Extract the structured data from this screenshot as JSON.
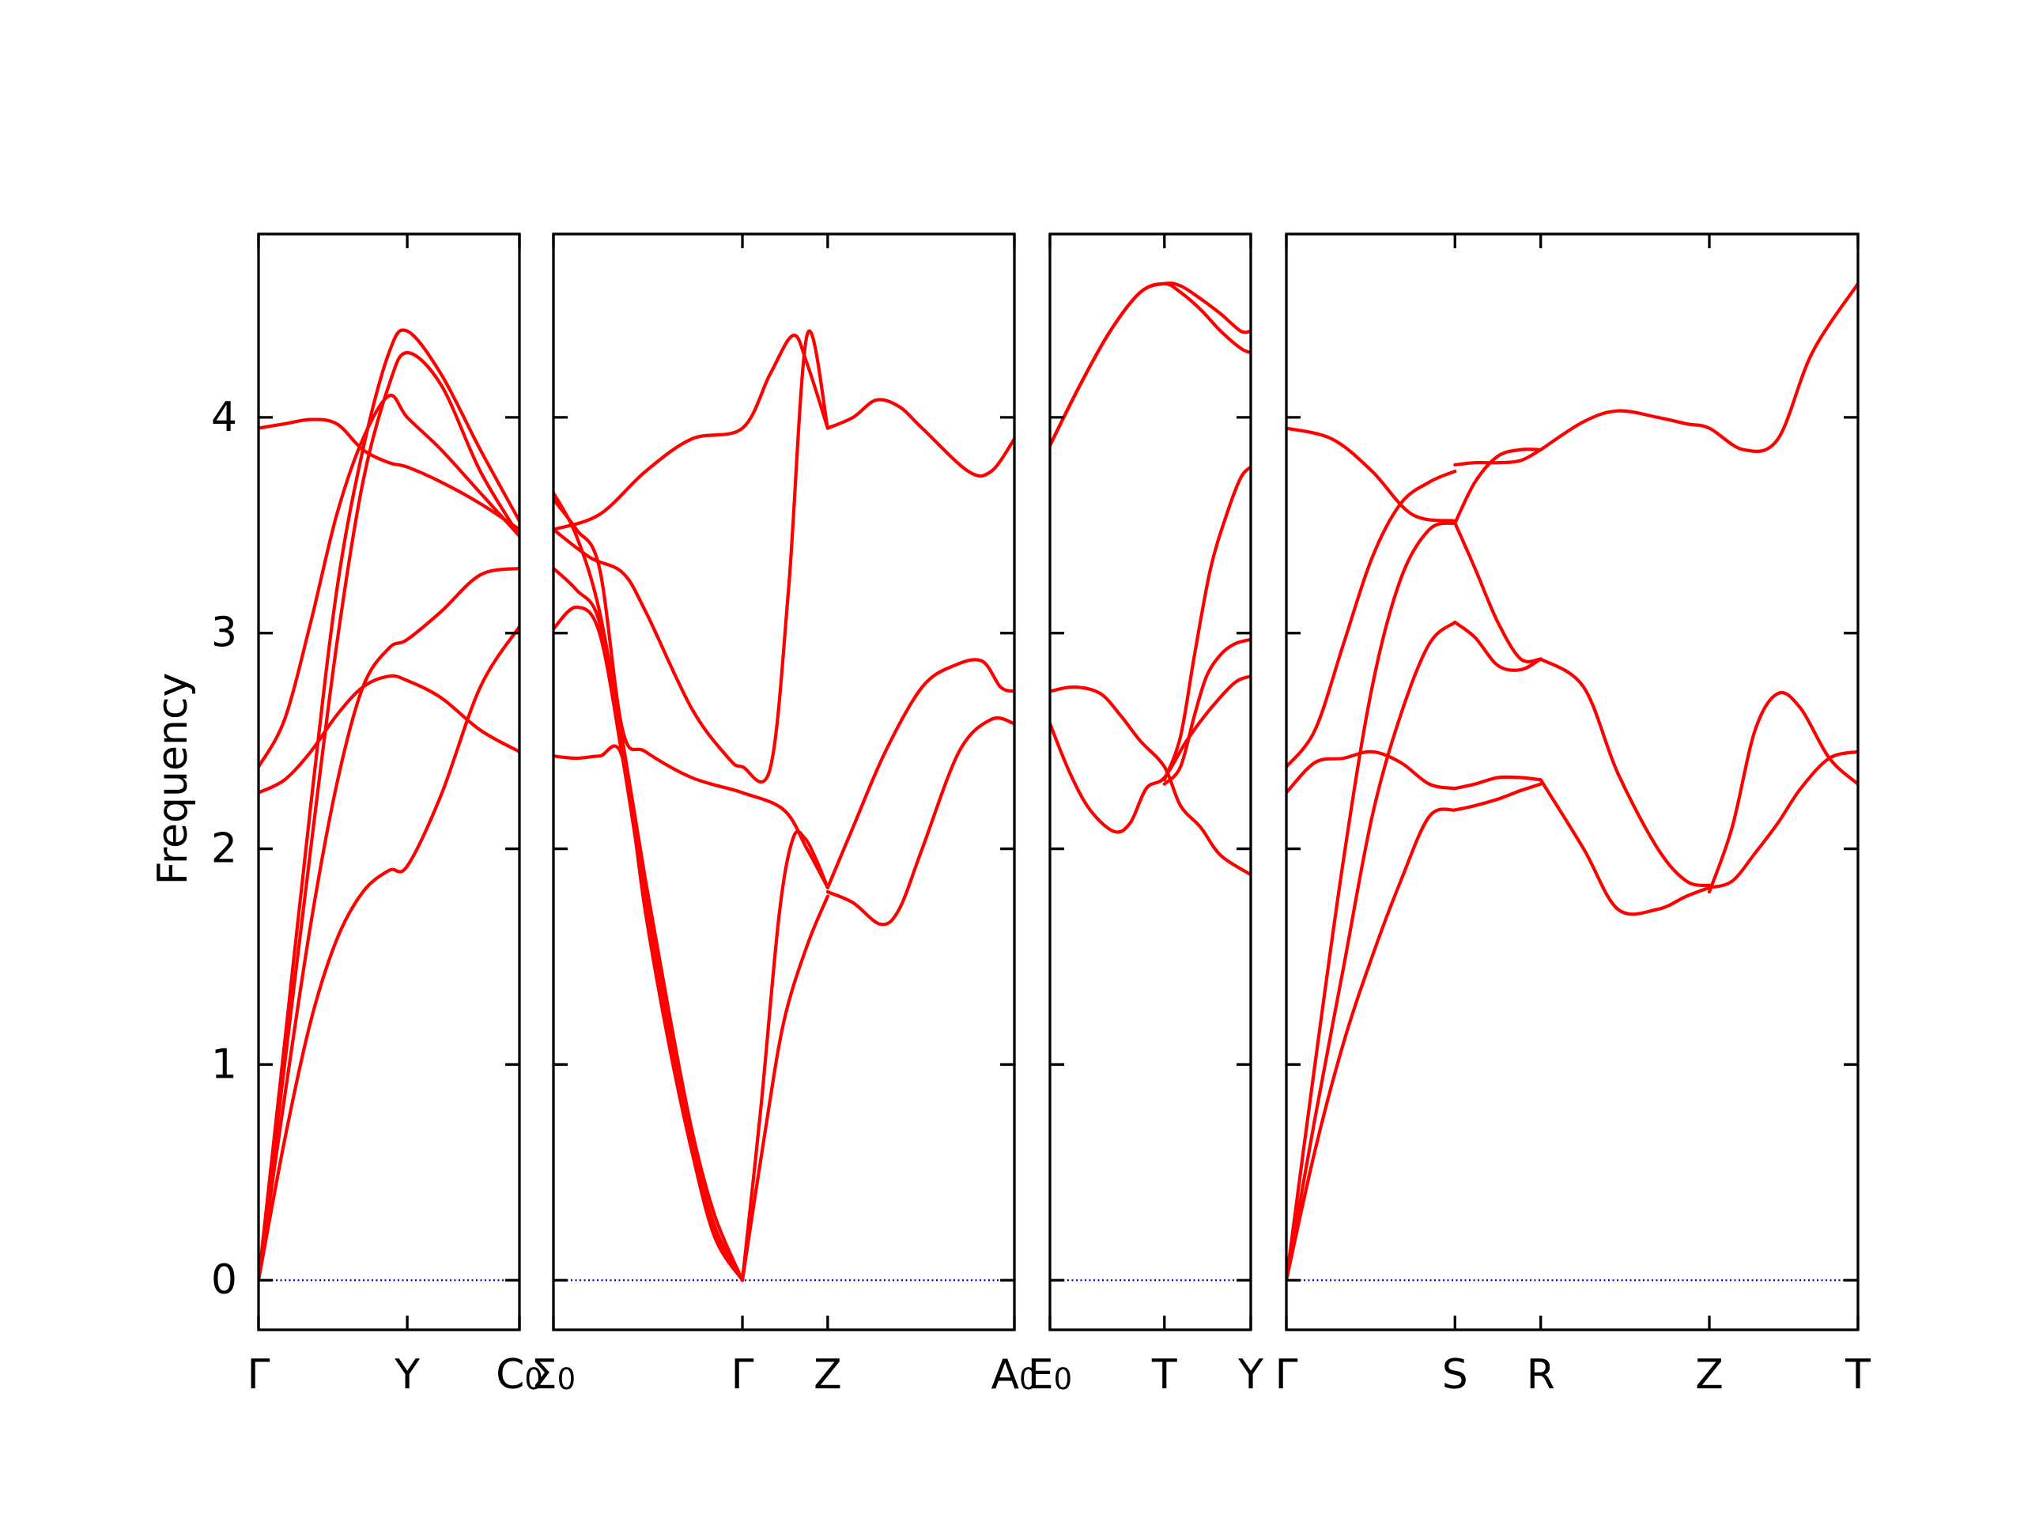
{
  "colors": {
    "band": "#ff0000",
    "zero_line": "#0000cc",
    "axis": "#000000"
  },
  "chart_data": {
    "type": "line",
    "ylabel": "Frequency",
    "ylim": [
      -0.23,
      4.85
    ],
    "yticks": [
      0,
      1,
      2,
      3,
      4
    ],
    "ytick_labels": [
      "0",
      "1",
      "2",
      "3",
      "4"
    ],
    "grid": false,
    "legend": "none",
    "panels": [
      {
        "id": "panel-1",
        "xlim": [
          0,
          1
        ],
        "ticks": [
          {
            "x": 0,
            "main": "Γ",
            "sub": ""
          },
          {
            "x": 0.57,
            "main": "Y",
            "sub": ""
          },
          {
            "x": 1,
            "main": "C",
            "sub": "0"
          }
        ],
        "bands": [
          {
            "x": [
              0,
              0.1,
              0.2,
              0.3,
              0.4,
              0.5,
              0.57,
              0.7,
              0.85,
              1
            ],
            "y": [
              0,
              1.1,
              2.2,
              3.2,
              3.85,
              4.3,
              4.4,
              4.2,
              3.85,
              3.52
            ]
          },
          {
            "x": [
              0,
              0.1,
              0.2,
              0.3,
              0.4,
              0.5,
              0.57,
              0.7,
              0.85,
              1
            ],
            "y": [
              0,
              1.0,
              2.0,
              2.95,
              3.7,
              4.15,
              4.3,
              4.15,
              3.75,
              3.45
            ]
          },
          {
            "x": [
              0,
              0.1,
              0.2,
              0.3,
              0.4,
              0.5,
              0.57,
              0.7,
              0.85,
              1
            ],
            "y": [
              0,
              0.85,
              1.65,
              2.3,
              2.75,
              2.93,
              2.97,
              3.1,
              3.27,
              3.3
            ]
          },
          {
            "x": [
              0,
              0.1,
              0.2,
              0.3,
              0.4,
              0.5,
              0.57,
              0.7,
              0.85,
              1
            ],
            "y": [
              0,
              0.65,
              1.2,
              1.58,
              1.8,
              1.9,
              1.92,
              2.25,
              2.75,
              3.03
            ]
          },
          {
            "x": [
              0,
              0.1,
              0.2,
              0.3,
              0.4,
              0.5,
              0.57,
              0.7,
              0.85,
              1
            ],
            "y": [
              2.38,
              2.6,
              3.05,
              3.55,
              3.9,
              4.1,
              4.0,
              3.85,
              3.65,
              3.45
            ]
          },
          {
            "x": [
              0,
              0.1,
              0.2,
              0.3,
              0.4,
              0.5,
              0.57,
              0.7,
              0.85,
              1
            ],
            "y": [
              2.26,
              2.32,
              2.45,
              2.62,
              2.75,
              2.8,
              2.78,
              2.7,
              2.55,
              2.45
            ]
          },
          {
            "x": [
              0,
              0.1,
              0.2,
              0.3,
              0.4,
              0.5,
              0.57,
              0.7,
              0.85,
              1
            ],
            "y": [
              3.95,
              3.97,
              3.99,
              3.97,
              3.85,
              3.79,
              3.77,
              3.7,
              3.6,
              3.48
            ]
          }
        ]
      },
      {
        "id": "panel-2",
        "xlim": [
          0,
          1
        ],
        "ticks": [
          {
            "x": 0,
            "main": "Σ",
            "sub": "0"
          },
          {
            "x": 0.41,
            "main": "Γ",
            "sub": ""
          },
          {
            "x": 0.595,
            "main": "Z",
            "sub": ""
          },
          {
            "x": 1,
            "main": "A",
            "sub": "0"
          }
        ],
        "bands": [
          {
            "x": [
              0,
              0.05,
              0.1,
              0.15,
              0.2,
              0.25,
              0.3,
              0.35,
              0.41
            ],
            "y": [
              3.65,
              3.45,
              3.1,
              2.5,
              1.85,
              1.25,
              0.7,
              0.3,
              0
            ]
          },
          {
            "x": [
              0,
              0.05,
              0.1,
              0.15,
              0.2,
              0.25,
              0.3,
              0.35,
              0.41
            ],
            "y": [
              3.3,
              3.2,
              3.05,
              2.45,
              1.8,
              1.2,
              0.65,
              0.25,
              0
            ]
          },
          {
            "x": [
              0,
              0.05,
              0.1,
              0.15,
              0.2,
              0.25,
              0.3,
              0.35,
              0.41
            ],
            "y": [
              3.02,
              3.12,
              3.0,
              2.42,
              1.75,
              1.15,
              0.62,
              0.22,
              0
            ]
          },
          {
            "x": [
              0,
              0.05,
              0.1,
              0.15,
              0.2,
              0.25,
              0.3,
              0.35,
              0.41
            ],
            "y": [
              2.43,
              2.42,
              2.43,
              2.42,
              1.7,
              1.1,
              0.6,
              0.2,
              0
            ]
          },
          {
            "x": [
              0,
              0.05,
              0.1,
              0.15,
              0.2,
              0.3,
              0.41,
              0.5,
              0.55,
              0.595
            ],
            "y": [
              3.62,
              3.48,
              3.3,
              2.55,
              2.45,
              2.33,
              2.26,
              2.18,
              2.0,
              1.82
            ]
          },
          {
            "x": [
              0,
              0.08,
              0.15,
              0.2,
              0.3,
              0.38,
              0.41,
              0.47,
              0.51,
              0.55,
              0.595
            ],
            "y": [
              3.48,
              3.35,
              3.28,
              3.1,
              2.65,
              2.42,
              2.38,
              2.37,
              3.2,
              4.38,
              3.95
            ]
          },
          {
            "x": [
              0,
              0.1,
              0.2,
              0.3,
              0.41,
              0.47,
              0.52,
              0.55,
              0.595
            ],
            "y": [
              3.48,
              3.55,
              3.75,
              3.9,
              3.95,
              4.2,
              4.38,
              4.25,
              3.95
            ]
          },
          {
            "x": [
              0.41,
              0.46,
              0.5,
              0.55,
              0.595
            ],
            "y": [
              0,
              0.7,
              1.2,
              1.55,
              1.78
            ]
          },
          {
            "x": [
              0.41,
              0.45,
              0.49,
              0.52,
              0.545,
              0.57,
              0.595
            ],
            "y": [
              0,
              0.8,
              1.7,
              2.05,
              2.05,
              1.95,
              1.82
            ]
          },
          {
            "x": [
              0.595,
              0.65,
              0.7,
              0.75,
              0.8,
              0.9,
              0.95,
              1
            ],
            "y": [
              3.95,
              4.0,
              4.08,
              4.05,
              3.95,
              3.75,
              3.75,
              3.9
            ]
          },
          {
            "x": [
              0.595,
              0.65,
              0.72,
              0.8,
              0.87,
              0.93,
              0.97,
              1
            ],
            "y": [
              1.82,
              2.1,
              2.45,
              2.75,
              2.85,
              2.87,
              2.75,
              2.73
            ]
          },
          {
            "x": [
              0.595,
              0.65,
              0.71,
              0.75,
              0.8,
              0.88,
              0.95,
              1
            ],
            "y": [
              1.8,
              1.75,
              1.65,
              1.72,
              2.0,
              2.45,
              2.6,
              2.58
            ]
          }
        ]
      },
      {
        "id": "panel-3",
        "xlim": [
          0,
          1
        ],
        "ticks": [
          {
            "x": 0,
            "main": "E",
            "sub": "0"
          },
          {
            "x": 0.57,
            "main": "T",
            "sub": ""
          },
          {
            "x": 1,
            "main": "Y",
            "sub": ""
          }
        ],
        "bands": [
          {
            "x": [
              0,
              0.15,
              0.3,
              0.45,
              0.57,
              0.65,
              0.75,
              0.85,
              0.95,
              1
            ],
            "y": [
              3.87,
              4.15,
              4.4,
              4.58,
              4.62,
              4.61,
              4.55,
              4.48,
              4.4,
              4.4
            ]
          },
          {
            "x": [
              0,
              0.15,
              0.3,
              0.45,
              0.57,
              0.65,
              0.75,
              0.85,
              0.95,
              1
            ],
            "y": [
              3.87,
              4.15,
              4.4,
              4.58,
              4.62,
              4.58,
              4.5,
              4.4,
              4.32,
              4.3
            ]
          },
          {
            "x": [
              0,
              0.12,
              0.25,
              0.35,
              0.45,
              0.57,
              0.65,
              0.75,
              0.85,
              1
            ],
            "y": [
              2.73,
              2.75,
              2.72,
              2.62,
              2.5,
              2.38,
              2.2,
              2.1,
              1.97,
              1.88
            ]
          },
          {
            "x": [
              0,
              0.1,
              0.2,
              0.32,
              0.4,
              0.48,
              0.57,
              0.68,
              0.8,
              0.92,
              1
            ],
            "y": [
              2.58,
              2.35,
              2.18,
              2.08,
              2.12,
              2.28,
              2.33,
              2.5,
              2.65,
              2.77,
              2.8
            ]
          },
          {
            "x": [
              0.57,
              0.65,
              0.72,
              0.78,
              0.85,
              0.92,
              1
            ],
            "y": [
              2.3,
              2.38,
              2.62,
              2.8,
              2.9,
              2.95,
              2.97
            ]
          },
          {
            "x": [
              0.57,
              0.65,
              0.72,
              0.8,
              0.88,
              0.95,
              1
            ],
            "y": [
              2.32,
              2.52,
              2.9,
              3.3,
              3.55,
              3.72,
              3.77
            ]
          }
        ]
      },
      {
        "id": "panel-4",
        "xlim": [
          0,
          1
        ],
        "ticks": [
          {
            "x": 0,
            "main": "Γ",
            "sub": ""
          },
          {
            "x": 0.295,
            "main": "S",
            "sub": ""
          },
          {
            "x": 0.445,
            "main": "R",
            "sub": ""
          },
          {
            "x": 0.74,
            "main": "Z",
            "sub": ""
          },
          {
            "x": 1,
            "main": "T",
            "sub": ""
          }
        ],
        "bands": [
          {
            "x": [
              0,
              0.05,
              0.1,
              0.15,
              0.2,
              0.25,
              0.295
            ],
            "y": [
              0,
              1.0,
              1.95,
              2.75,
              3.25,
              3.48,
              3.51
            ]
          },
          {
            "x": [
              0,
              0.05,
              0.1,
              0.15,
              0.2,
              0.25,
              0.295
            ],
            "y": [
              0,
              0.75,
              1.45,
              2.15,
              2.62,
              2.95,
              3.05
            ]
          },
          {
            "x": [
              0,
              0.05,
              0.1,
              0.15,
              0.2,
              0.25,
              0.295
            ],
            "y": [
              0,
              0.6,
              1.1,
              1.5,
              1.85,
              2.15,
              2.18
            ]
          },
          {
            "x": [
              0,
              0.05,
              0.1,
              0.15,
              0.2,
              0.25,
              0.295
            ],
            "y": [
              2.38,
              2.55,
              2.95,
              3.35,
              3.6,
              3.7,
              3.75
            ]
          },
          {
            "x": [
              0,
              0.05,
              0.1,
              0.15,
              0.2,
              0.25,
              0.295
            ],
            "y": [
              2.26,
              2.4,
              2.42,
              2.45,
              2.4,
              2.3,
              2.28
            ]
          },
          {
            "x": [
              0,
              0.08,
              0.15,
              0.22,
              0.295
            ],
            "y": [
              3.95,
              3.9,
              3.75,
              3.55,
              3.52
            ]
          },
          {
            "x": [
              0.295,
              0.33,
              0.37,
              0.41,
              0.445
            ],
            "y": [
              3.78,
              3.79,
              3.79,
              3.8,
              3.85
            ]
          },
          {
            "x": [
              0.295,
              0.33,
              0.37,
              0.41,
              0.445
            ],
            "y": [
              3.51,
              3.7,
              3.82,
              3.85,
              3.85
            ]
          },
          {
            "x": [
              0.295,
              0.33,
              0.37,
              0.41,
              0.445
            ],
            "y": [
              3.51,
              3.3,
              3.05,
              2.88,
              2.88
            ]
          },
          {
            "x": [
              0.295,
              0.33,
              0.37,
              0.41,
              0.445
            ],
            "y": [
              3.05,
              2.98,
              2.85,
              2.83,
              2.88
            ]
          },
          {
            "x": [
              0.295,
              0.33,
              0.37,
              0.41,
              0.445
            ],
            "y": [
              2.28,
              2.3,
              2.33,
              2.33,
              2.32
            ]
          },
          {
            "x": [
              0.295,
              0.33,
              0.37,
              0.41,
              0.445
            ],
            "y": [
              2.18,
              2.2,
              2.23,
              2.27,
              2.3
            ]
          },
          {
            "x": [
              0.445,
              0.52,
              0.58,
              0.65,
              0.7,
              0.74,
              0.8,
              0.86,
              0.92,
              1
            ],
            "y": [
              3.85,
              3.98,
              4.03,
              4.0,
              3.97,
              3.95,
              3.85,
              3.9,
              4.3,
              4.62
            ]
          },
          {
            "x": [
              0.445,
              0.52,
              0.58,
              0.65,
              0.7,
              0.74
            ],
            "y": [
              2.88,
              2.75,
              2.35,
              2.0,
              1.85,
              1.83
            ]
          },
          {
            "x": [
              0.445,
              0.52,
              0.58,
              0.65,
              0.7,
              0.74
            ],
            "y": [
              2.32,
              2.0,
              1.72,
              1.72,
              1.78,
              1.82
            ]
          },
          {
            "x": [
              0.74,
              0.78,
              0.82,
              0.86,
              0.9,
              0.95,
              1
            ],
            "y": [
              1.8,
              2.1,
              2.55,
              2.72,
              2.65,
              2.42,
              2.3
            ]
          },
          {
            "x": [
              0.74,
              0.78,
              0.82,
              0.86,
              0.9,
              0.95,
              1
            ],
            "y": [
              1.82,
              1.85,
              1.98,
              2.12,
              2.28,
              2.42,
              2.45
            ]
          }
        ]
      }
    ]
  }
}
